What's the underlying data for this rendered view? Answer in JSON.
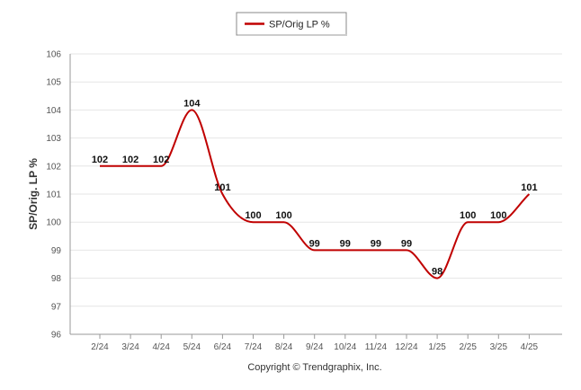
{
  "legend": {
    "label": "SP/Orig LP %"
  },
  "copyright": "Copyright © Trendgraphix, Inc.",
  "colors": {
    "series": "#c00000",
    "grid": "#e6e6e6",
    "axis": "#999999"
  },
  "chart_data": {
    "type": "line",
    "title": "",
    "xlabel": "",
    "ylabel": "SP/Orig. LP %",
    "ylim": [
      96,
      106
    ],
    "yticks": [
      96,
      97,
      98,
      99,
      100,
      101,
      102,
      103,
      104,
      105,
      106
    ],
    "grid": true,
    "legend_position": "top-center",
    "categories": [
      "2/24",
      "3/24",
      "4/24",
      "5/24",
      "6/24",
      "7/24",
      "8/24",
      "9/24",
      "10/24",
      "11/24",
      "12/24",
      "1/25",
      "2/25",
      "3/25",
      "4/25"
    ],
    "series": [
      {
        "name": "SP/Orig LP %",
        "values": [
          102,
          102,
          102,
          104,
          101,
          100,
          100,
          99,
          99,
          99,
          99,
          98,
          100,
          100,
          101
        ]
      }
    ]
  }
}
